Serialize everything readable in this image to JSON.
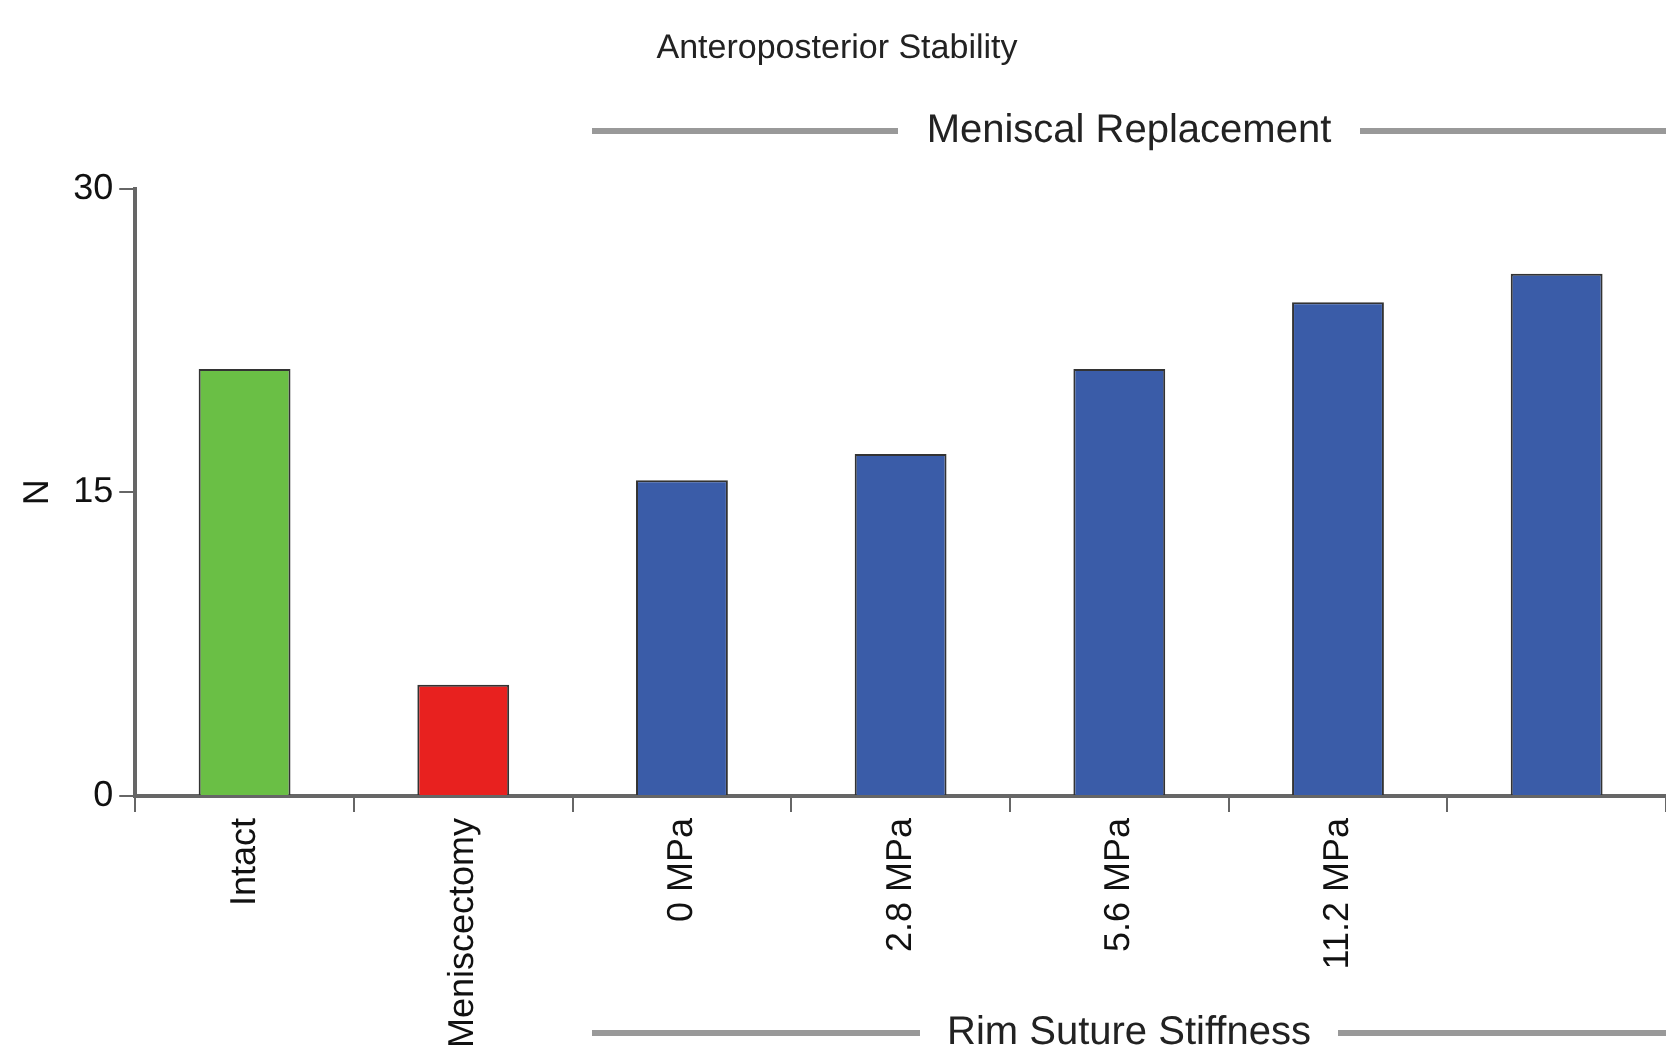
{
  "chart_data": {
    "type": "bar",
    "title": "Anteroposterior Stability",
    "ylabel": "N",
    "categories": [
      "Intact",
      "Meniscectomy",
      "0 MPa",
      "2.8 MPa",
      "5.6 MPa",
      "11.2 MPa",
      null
    ],
    "values": [
      21.1,
      5.5,
      15.6,
      16.9,
      21.1,
      24.4,
      25.8
    ],
    "colors": [
      "#6abf45",
      "#e8211f",
      "#3a5ca8",
      "#3a5ca8",
      "#3a5ca8",
      "#3a5ca8",
      "#3a5ca8"
    ],
    "ylim": [
      0,
      30
    ],
    "yticks": [
      0,
      15,
      30
    ],
    "grid": false,
    "legend": false,
    "annotations": [
      "Meniscal Replacement",
      "Rim Suture Stiffness"
    ]
  }
}
